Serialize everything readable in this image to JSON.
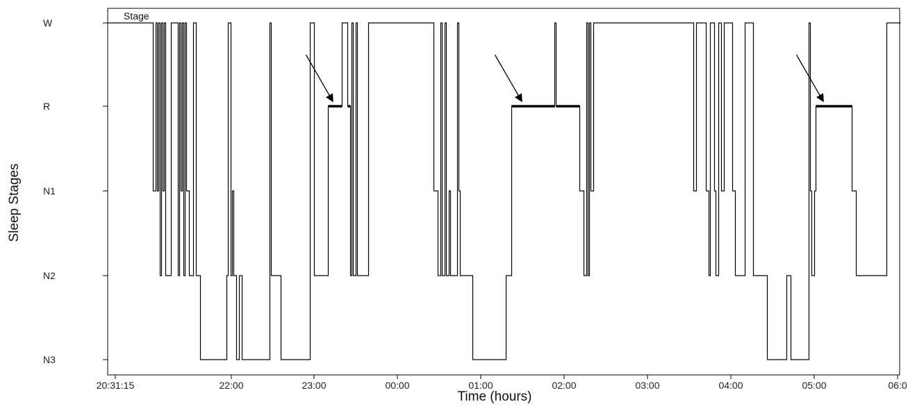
{
  "chart_data": {
    "type": "line",
    "xlabel": "Time (hours)",
    "ylabel": "Sleep Stages",
    "legend": "Stage",
    "legend_position": "top-left",
    "grid": false,
    "x_tick_labels": [
      "20:31:15",
      "22:00",
      "23:00",
      "00:00",
      "01:00",
      "02:00",
      "03:00",
      "04:00",
      "05:00",
      "06:0"
    ],
    "y_categories": [
      "W",
      "R",
      "N1",
      "N2",
      "N3"
    ],
    "series": [
      {
        "points": [
          [
            "20:31:15",
            "W"
          ],
          [
            "21:04",
            "W"
          ],
          [
            "21:04",
            "N1"
          ],
          [
            "21:06",
            "N1"
          ],
          [
            "21:06",
            "W"
          ],
          [
            "21:07",
            "W"
          ],
          [
            "21:07",
            "N1"
          ],
          [
            "21:08",
            "N1"
          ],
          [
            "21:08",
            "W"
          ],
          [
            "21:09",
            "W"
          ],
          [
            "21:09",
            "N2"
          ],
          [
            "21:10",
            "N2"
          ],
          [
            "21:10",
            "W"
          ],
          [
            "21:11",
            "W"
          ],
          [
            "21:11",
            "N1"
          ],
          [
            "21:12",
            "N1"
          ],
          [
            "21:12",
            "W"
          ],
          [
            "21:13",
            "W"
          ],
          [
            "21:13",
            "N2"
          ],
          [
            "21:17",
            "N2"
          ],
          [
            "21:17",
            "W"
          ],
          [
            "21:22",
            "W"
          ],
          [
            "21:22",
            "N2"
          ],
          [
            "21:23",
            "N2"
          ],
          [
            "21:23",
            "W"
          ],
          [
            "21:24",
            "W"
          ],
          [
            "21:24",
            "N1"
          ],
          [
            "21:25",
            "N1"
          ],
          [
            "21:25",
            "W"
          ],
          [
            "21:26",
            "W"
          ],
          [
            "21:26",
            "N2"
          ],
          [
            "21:27",
            "N2"
          ],
          [
            "21:27",
            "W"
          ],
          [
            "21:28",
            "W"
          ],
          [
            "21:28",
            "N1"
          ],
          [
            "21:30",
            "N1"
          ],
          [
            "21:30",
            "N2"
          ],
          [
            "21:33",
            "N2"
          ],
          [
            "21:33",
            "W"
          ],
          [
            "21:35",
            "W"
          ],
          [
            "21:35",
            "N2"
          ],
          [
            "21:38",
            "N2"
          ],
          [
            "21:38",
            "N3"
          ],
          [
            "21:57",
            "N3"
          ],
          [
            "21:57",
            "N2"
          ],
          [
            "21:58",
            "N2"
          ],
          [
            "21:58",
            "W"
          ],
          [
            "22:00",
            "W"
          ],
          [
            "22:00",
            "N2"
          ],
          [
            "22:01",
            "N2"
          ],
          [
            "22:01",
            "N1"
          ],
          [
            "22:02",
            "N1"
          ],
          [
            "22:02",
            "N2"
          ],
          [
            "22:04",
            "N2"
          ],
          [
            "22:04",
            "N3"
          ],
          [
            "22:06",
            "N3"
          ],
          [
            "22:06",
            "N2"
          ],
          [
            "22:08",
            "N2"
          ],
          [
            "22:08",
            "N3"
          ],
          [
            "22:28",
            "N3"
          ],
          [
            "22:28",
            "W"
          ],
          [
            "22:29",
            "W"
          ],
          [
            "22:29",
            "N2"
          ],
          [
            "22:36",
            "N2"
          ],
          [
            "22:36",
            "N3"
          ],
          [
            "22:57",
            "N3"
          ],
          [
            "22:57",
            "W"
          ],
          [
            "23:00",
            "W"
          ],
          [
            "23:00",
            "N2"
          ],
          [
            "23:10",
            "N2"
          ],
          [
            "23:10",
            "R"
          ],
          [
            "23:20",
            "R"
          ],
          [
            "23:20",
            "W"
          ],
          [
            "23:24",
            "W"
          ],
          [
            "23:24",
            "R"
          ],
          [
            "23:26",
            "R"
          ],
          [
            "23:26",
            "N2"
          ],
          [
            "23:27",
            "N2"
          ],
          [
            "23:27",
            "W"
          ],
          [
            "23:28",
            "W"
          ],
          [
            "23:28",
            "N2"
          ],
          [
            "23:30",
            "N2"
          ],
          [
            "23:30",
            "W"
          ],
          [
            "23:31",
            "W"
          ],
          [
            "23:31",
            "N2"
          ],
          [
            "23:39",
            "N2"
          ],
          [
            "23:39",
            "W"
          ],
          [
            "00:26",
            "W"
          ],
          [
            "00:26",
            "N1"
          ],
          [
            "00:29",
            "N1"
          ],
          [
            "00:29",
            "N2"
          ],
          [
            "00:31",
            "N2"
          ],
          [
            "00:31",
            "W"
          ],
          [
            "00:32",
            "W"
          ],
          [
            "00:32",
            "N2"
          ],
          [
            "00:34",
            "N2"
          ],
          [
            "00:34",
            "W"
          ],
          [
            "00:35",
            "W"
          ],
          [
            "00:35",
            "N2"
          ],
          [
            "00:37",
            "N2"
          ],
          [
            "00:37",
            "N1"
          ],
          [
            "00:38",
            "N1"
          ],
          [
            "00:38",
            "N2"
          ],
          [
            "00:43",
            "N2"
          ],
          [
            "00:43",
            "W"
          ],
          [
            "00:44",
            "W"
          ],
          [
            "00:44",
            "N1"
          ],
          [
            "00:45",
            "N1"
          ],
          [
            "00:45",
            "N2"
          ],
          [
            "00:54",
            "N2"
          ],
          [
            "00:54",
            "N3"
          ],
          [
            "01:18",
            "N3"
          ],
          [
            "01:18",
            "N2"
          ],
          [
            "01:22",
            "N2"
          ],
          [
            "01:22",
            "R"
          ],
          [
            "01:53",
            "R"
          ],
          [
            "01:53",
            "W"
          ],
          [
            "01:54",
            "W"
          ],
          [
            "01:54",
            "R"
          ],
          [
            "02:11",
            "R"
          ],
          [
            "02:11",
            "N1"
          ],
          [
            "02:14",
            "N1"
          ],
          [
            "02:14",
            "N2"
          ],
          [
            "02:16",
            "N2"
          ],
          [
            "02:16",
            "W"
          ],
          [
            "02:17",
            "W"
          ],
          [
            "02:17",
            "N2"
          ],
          [
            "02:18",
            "N2"
          ],
          [
            "02:18",
            "W"
          ],
          [
            "02:19",
            "W"
          ],
          [
            "02:19",
            "N1"
          ],
          [
            "02:21",
            "N1"
          ],
          [
            "02:21",
            "W"
          ],
          [
            "03:33",
            "W"
          ],
          [
            "03:33",
            "N1"
          ],
          [
            "03:35",
            "N1"
          ],
          [
            "03:35",
            "W"
          ],
          [
            "03:42",
            "W"
          ],
          [
            "03:42",
            "N1"
          ],
          [
            "03:44",
            "N1"
          ],
          [
            "03:44",
            "N2"
          ],
          [
            "03:45",
            "N2"
          ],
          [
            "03:45",
            "W"
          ],
          [
            "03:48",
            "W"
          ],
          [
            "03:48",
            "N1"
          ],
          [
            "03:49",
            "N1"
          ],
          [
            "03:49",
            "N2"
          ],
          [
            "03:51",
            "N2"
          ],
          [
            "03:51",
            "W"
          ],
          [
            "03:53",
            "W"
          ],
          [
            "03:53",
            "N1"
          ],
          [
            "03:55",
            "N1"
          ],
          [
            "03:55",
            "W"
          ],
          [
            "04:01",
            "W"
          ],
          [
            "04:01",
            "N1"
          ],
          [
            "04:03",
            "N1"
          ],
          [
            "04:03",
            "N2"
          ],
          [
            "04:10",
            "N2"
          ],
          [
            "04:10",
            "W"
          ],
          [
            "04:16",
            "W"
          ],
          [
            "04:16",
            "N2"
          ],
          [
            "04:26",
            "N2"
          ],
          [
            "04:26",
            "N3"
          ],
          [
            "04:40",
            "N3"
          ],
          [
            "04:40",
            "N2"
          ],
          [
            "04:43",
            "N2"
          ],
          [
            "04:43",
            "N3"
          ],
          [
            "04:56",
            "N3"
          ],
          [
            "04:56",
            "W"
          ],
          [
            "04:57",
            "W"
          ],
          [
            "04:57",
            "N1"
          ],
          [
            "04:58",
            "N1"
          ],
          [
            "04:58",
            "N2"
          ],
          [
            "05:00",
            "N2"
          ],
          [
            "05:00",
            "N1"
          ],
          [
            "05:01",
            "N1"
          ],
          [
            "05:01",
            "R"
          ],
          [
            "05:27",
            "R"
          ],
          [
            "05:27",
            "N1"
          ],
          [
            "05:30",
            "N1"
          ],
          [
            "05:30",
            "N2"
          ],
          [
            "05:52",
            "N2"
          ],
          [
            "05:52",
            "W"
          ],
          [
            "06:02",
            "W"
          ]
        ]
      }
    ],
    "annotations": [
      {
        "type": "arrow",
        "target": [
          "23:14",
          "R"
        ]
      },
      {
        "type": "arrow",
        "target": [
          "01:30",
          "R"
        ]
      },
      {
        "type": "arrow",
        "target": [
          "05:07",
          "R"
        ]
      }
    ]
  }
}
